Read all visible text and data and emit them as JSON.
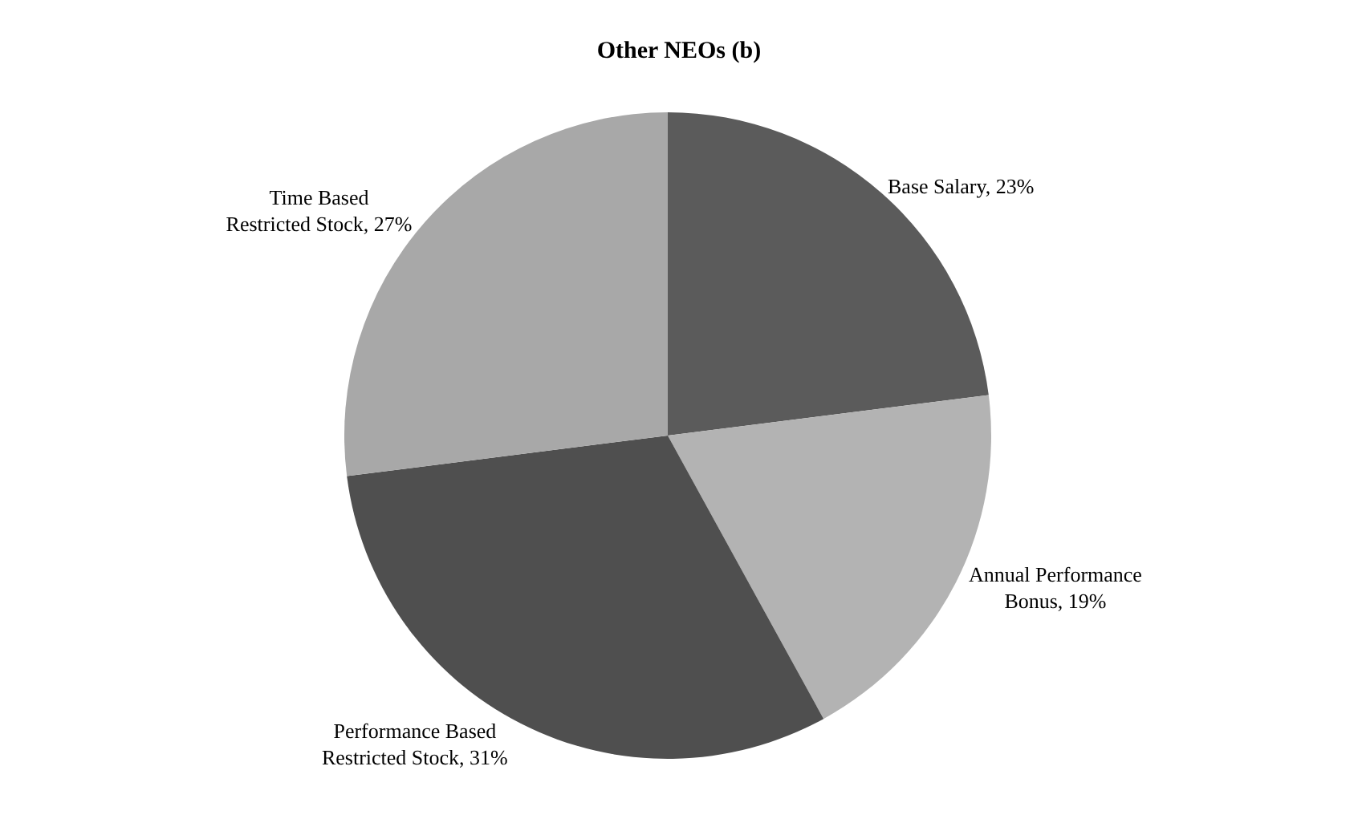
{
  "chart_data": {
    "type": "pie",
    "title": "Other NEOs (b)",
    "categories": [
      "Base Salary",
      "Annual Performance Bonus",
      "Performance Based Restricted Stock",
      "Time Based Restricted Stock"
    ],
    "values": [
      23,
      19,
      31,
      27
    ],
    "value_labels": [
      "23%",
      "19%",
      "31%",
      "27%"
    ],
    "colors": [
      "#5b5b5b",
      "#b3b3b3",
      "#4f4f4f",
      "#a8a8a8"
    ],
    "legend": false
  }
}
